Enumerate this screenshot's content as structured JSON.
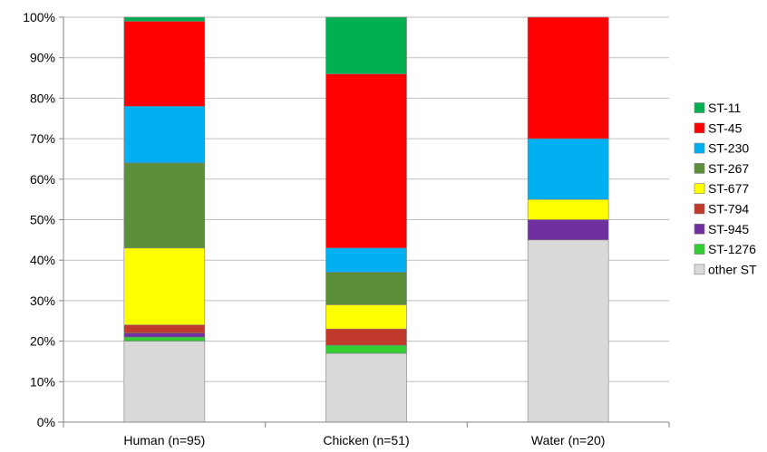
{
  "chart_data": {
    "type": "bar",
    "stacked": true,
    "percent_axis": true,
    "categories": [
      "Human (n=95)",
      "Chicken (n=51)",
      "Water (n=20)"
    ],
    "series": [
      {
        "name": "other ST",
        "color": "#D9D9D9",
        "values": [
          20,
          17,
          45
        ]
      },
      {
        "name": "ST-1276",
        "color": "#33CC33",
        "values": [
          1,
          2,
          0
        ]
      },
      {
        "name": "ST-945",
        "color": "#7030A0",
        "values": [
          1,
          0,
          5
        ]
      },
      {
        "name": "ST-794",
        "color": "#C0392B",
        "values": [
          2,
          4,
          0
        ]
      },
      {
        "name": "ST-677",
        "color": "#FFFF00",
        "values": [
          19,
          6,
          5
        ]
      },
      {
        "name": "ST-267",
        "color": "#5B8F3A",
        "values": [
          21,
          8,
          0
        ]
      },
      {
        "name": "ST-230",
        "color": "#00B0F0",
        "values": [
          14,
          6,
          15
        ]
      },
      {
        "name": "ST-45",
        "color": "#FF0000",
        "values": [
          21,
          43,
          30
        ]
      },
      {
        "name": "ST-11",
        "color": "#00B050",
        "values": [
          1,
          14,
          0
        ]
      }
    ],
    "ylim": [
      0,
      100
    ],
    "yticks": [
      "0%",
      "10%",
      "20%",
      "30%",
      "40%",
      "50%",
      "60%",
      "70%",
      "80%",
      "90%",
      "100%"
    ],
    "legend_order": [
      "ST-11",
      "ST-45",
      "ST-230",
      "ST-267",
      "ST-677",
      "ST-794",
      "ST-945",
      "ST-1276",
      "other ST"
    ],
    "legend_position": "right",
    "grid": true,
    "title": "",
    "xlabel": "",
    "ylabel": ""
  }
}
